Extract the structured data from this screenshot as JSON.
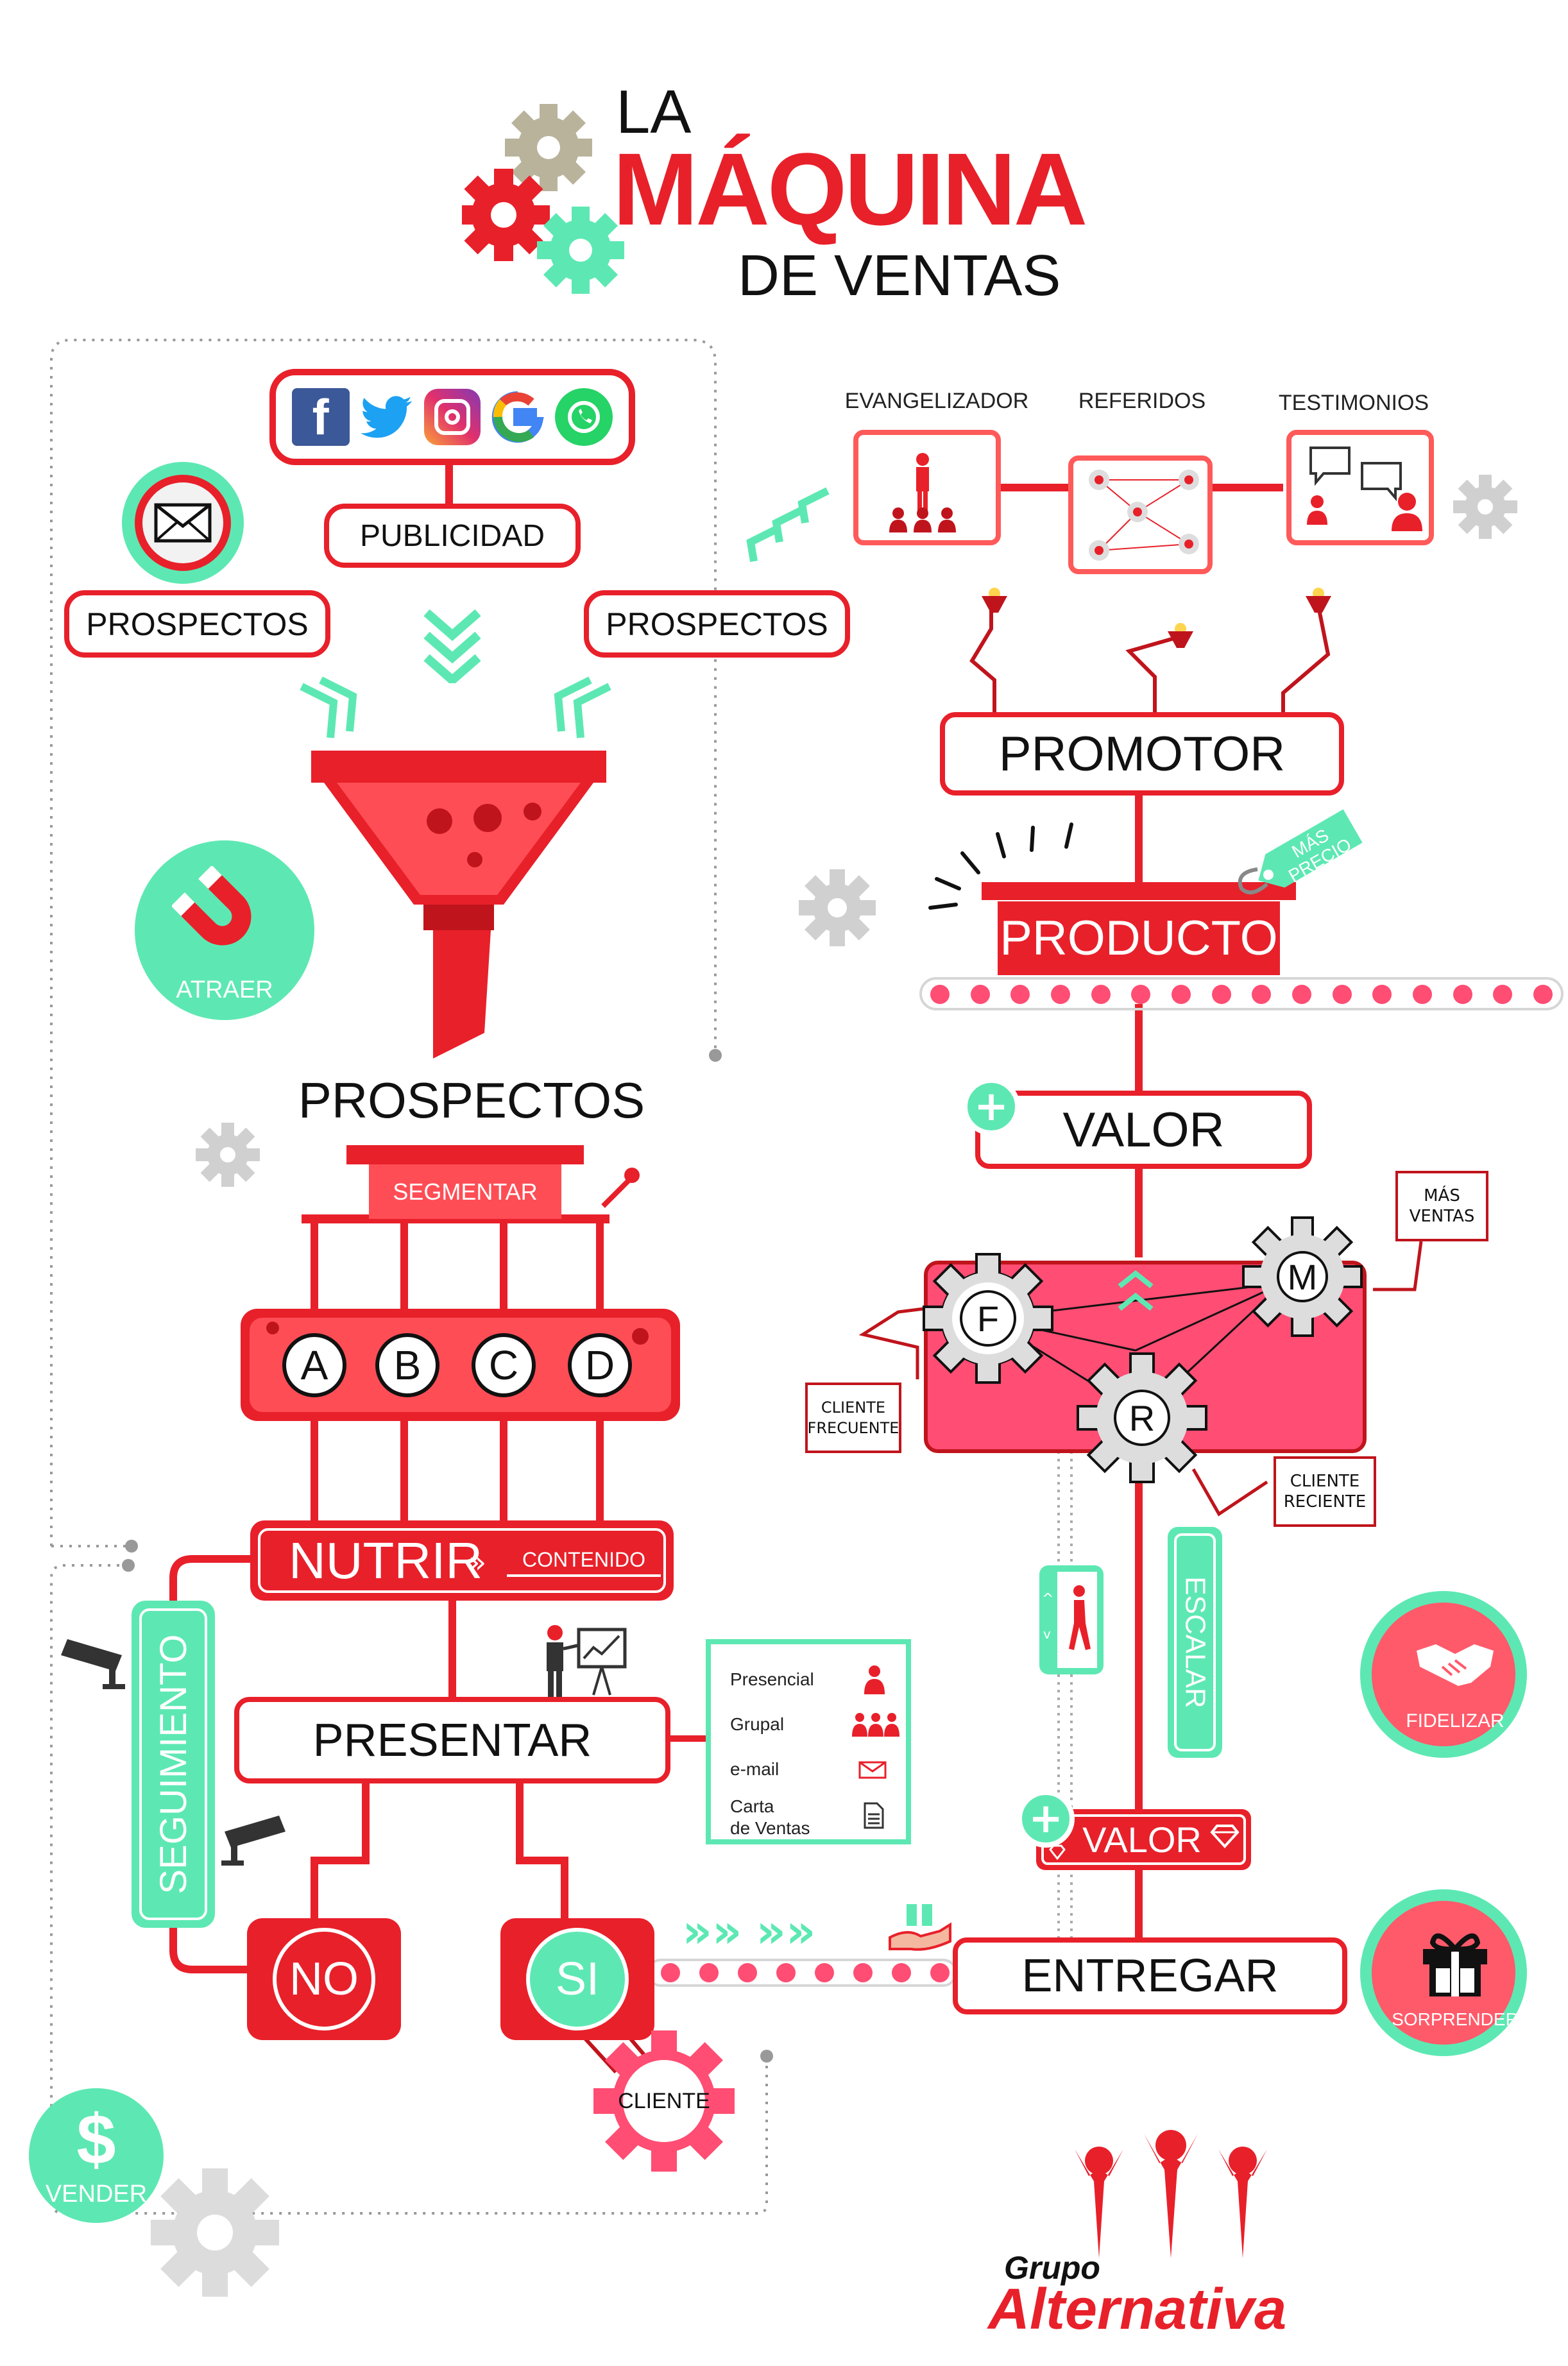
{
  "title": {
    "line1": "LA",
    "line2": "MÁQUINA",
    "line3": "DE VENTAS"
  },
  "social": {
    "icons": [
      "facebook-icon",
      "twitter-icon",
      "instagram-icon",
      "google-icon",
      "whatsapp-icon"
    ]
  },
  "left": {
    "publicidad": "PUBLICIDAD",
    "prospectos_left": "PROSPECTOS",
    "prospectos_right": "PROSPECTOS",
    "atraer": "ATRAER",
    "prospectos_title": "PROSPECTOS",
    "segmentar": "SEGMENTAR",
    "segments": [
      "A",
      "B",
      "C",
      "D"
    ],
    "nutrir": "NUTRIR",
    "contenido": "CONTENIDO",
    "seguimiento": "SEGUIMIENTO",
    "presentar": "PRESENTAR",
    "presentation_modes": [
      {
        "label": "Presencial",
        "icon": "person-icon"
      },
      {
        "label": "Grupal",
        "icon": "group-icon"
      },
      {
        "label": "e-mail",
        "icon": "envelope-icon"
      },
      {
        "label": "Carta\nde Ventas",
        "icon": "document-icon"
      }
    ],
    "no": "NO",
    "si": "SI",
    "cliente": "CLIENTE",
    "vender": "VENDER"
  },
  "right": {
    "evangelizador": "EVANGELIZADOR",
    "referidos": "REFERIDOS",
    "testimonios": "TESTIMONIOS",
    "promotor": "PROMOTOR",
    "producto": "PRODUCTO",
    "mas_precio": "MÁS\nPRECIO",
    "valor_top": "VALOR",
    "mas_ventas": "MÁS\nVENTAS",
    "gear_f": "F",
    "gear_m": "M",
    "gear_r": "R",
    "cliente_frecuente": "CLIENTE\nFRECUENTE",
    "cliente_reciente": "CLIENTE\nRECIENTE",
    "escalar": "ESCALAR",
    "fidelizar": "FIDELIZAR",
    "valor_bottom": "VALOR",
    "entregar": "ENTREGAR",
    "sorprender": "SORPRENDER"
  },
  "logo": {
    "line1": "Grupo",
    "line2": "Alternativa"
  },
  "colors": {
    "red": "#e8202a",
    "dark_red": "#c0141c",
    "pink": "#ff4d73",
    "mint": "#5de8b3",
    "gray": "#c8c8c8",
    "taupe": "#b9b39c"
  }
}
